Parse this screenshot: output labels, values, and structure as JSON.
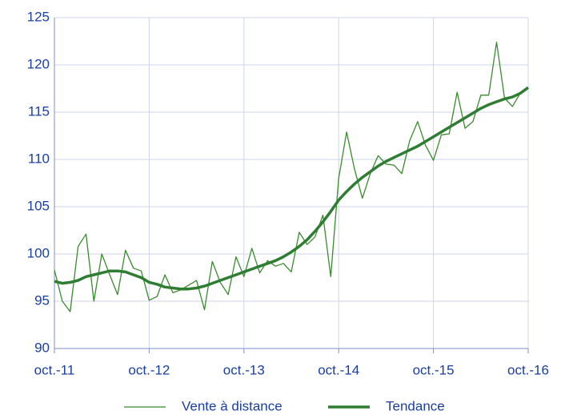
{
  "chart_data": {
    "type": "line",
    "categories": [
      "oct.-11",
      null,
      null,
      null,
      null,
      null,
      null,
      null,
      null,
      null,
      null,
      null,
      "oct.-12",
      null,
      null,
      null,
      null,
      null,
      null,
      null,
      null,
      null,
      null,
      null,
      "oct.-13",
      null,
      null,
      null,
      null,
      null,
      null,
      null,
      null,
      null,
      null,
      null,
      "oct.-14",
      null,
      null,
      null,
      null,
      null,
      null,
      null,
      null,
      null,
      null,
      null,
      "oct.-15",
      null,
      null,
      null,
      null,
      null,
      null,
      null,
      null,
      null,
      null,
      null,
      "oct.-16"
    ],
    "series": [
      {
        "name": "Vente à distance",
        "color": "#3a8a2e",
        "width": 1.3,
        "values": [
          98.3,
          95.0,
          93.9,
          100.8,
          102.1,
          95.0,
          100.0,
          97.8,
          95.7,
          100.4,
          98.5,
          98.2,
          95.1,
          95.5,
          97.8,
          95.9,
          96.2,
          96.7,
          97.2,
          94.1,
          99.2,
          97.0,
          95.7,
          99.7,
          97.6,
          100.6,
          98.0,
          99.3,
          98.7,
          99.0,
          98.1,
          102.3,
          101.0,
          101.8,
          104.1,
          97.6,
          108.0,
          112.9,
          109.0,
          105.9,
          108.5,
          110.4,
          109.5,
          109.4,
          108.5,
          112.0,
          114.0,
          111.5,
          109.9,
          112.6,
          112.7,
          117.1,
          113.3,
          114.0,
          116.8,
          116.8,
          122.4,
          116.5,
          115.6,
          117.0,
          117.6
        ]
      },
      {
        "name": "Tendance",
        "color": "#2e7d32",
        "width": 3.5,
        "values": [
          97.1,
          96.9,
          97.0,
          97.2,
          97.6,
          97.8,
          98.0,
          98.2,
          98.2,
          98.1,
          97.8,
          97.5,
          97.0,
          96.8,
          96.5,
          96.4,
          96.3,
          96.3,
          96.4,
          96.6,
          96.9,
          97.2,
          97.5,
          97.8,
          98.1,
          98.4,
          98.7,
          99.0,
          99.3,
          99.7,
          100.2,
          100.8,
          101.5,
          102.4,
          103.4,
          104.5,
          105.7,
          106.6,
          107.4,
          108.1,
          108.7,
          109.3,
          109.8,
          110.2,
          110.6,
          111.0,
          111.4,
          111.9,
          112.4,
          112.9,
          113.4,
          113.9,
          114.4,
          114.9,
          115.4,
          115.8,
          116.1,
          116.4,
          116.6,
          117.0,
          117.6
        ]
      }
    ],
    "ylim": [
      90,
      125
    ],
    "yticks": [
      90,
      95,
      100,
      105,
      110,
      115,
      120,
      125
    ],
    "grid": true
  }
}
